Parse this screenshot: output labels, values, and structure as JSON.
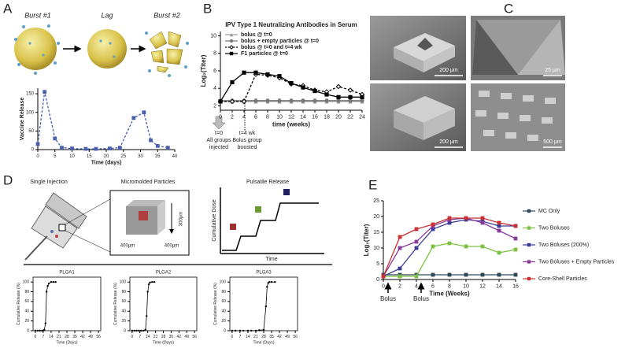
{
  "panel_labels": [
    "A",
    "B",
    "C",
    "D",
    "E"
  ],
  "panel_a": {
    "stages": [
      "Burst #1",
      "Lag",
      "Burst #2"
    ]
  },
  "panel_c": {
    "scale_bars": [
      "200 μm",
      "25 μm",
      "200 μm",
      "500 μm"
    ]
  },
  "panel_d": {
    "headings": [
      "Single Injection",
      "Micromolded Particles",
      "Pulsatile Release"
    ],
    "dimensions": [
      "300μm",
      "400μm",
      "400μm"
    ],
    "axes": [
      "Cumulative Dose",
      "Time"
    ]
  },
  "chart_data": [
    {
      "type": "line",
      "ylabel": "Vaccine Release",
      "xlabel": "Time (days)",
      "x": [
        0,
        2,
        5,
        7,
        10,
        14,
        17,
        21,
        24,
        28,
        31,
        33,
        35,
        38
      ],
      "values": [
        15,
        155,
        30,
        5,
        3,
        2,
        2,
        3,
        5,
        85,
        100,
        25,
        10,
        5
      ],
      "color": "#4a5fb0",
      "marker": "square",
      "dash": true,
      "xlim": [
        0,
        40
      ],
      "xticks": [
        0,
        5,
        10,
        15,
        20,
        25,
        30,
        35,
        40
      ],
      "ylim": [
        0,
        165
      ],
      "yticks": [
        0,
        50,
        100,
        150
      ]
    },
    {
      "type": "line",
      "title": "IPV Type 1 Neutralizing Antibodies in Serum",
      "ylabel": "Log₂(Titer)",
      "xlabel": "time (weeks)",
      "x": [
        0,
        2,
        4,
        6,
        8,
        10,
        12,
        14,
        16,
        18,
        20,
        22,
        24
      ],
      "series": [
        {
          "name": "bolus @ t=0",
          "color": "#999999",
          "marker": "triangle",
          "values": [
            2.5,
            2.5,
            2.5,
            2.5,
            2.5,
            2.5,
            2.5,
            2.5,
            2.5,
            2.5,
            2.5,
            2.5,
            2.5
          ]
        },
        {
          "name": "bolus + empty particles @ t=0",
          "color": "#777777",
          "marker": "circle",
          "values": [
            2.6,
            2.6,
            2.6,
            2.6,
            2.6,
            2.6,
            2.6,
            2.6,
            2.6,
            2.6,
            2.6,
            2.6,
            2.6
          ]
        },
        {
          "name": "bolus @ t=0 and t=4 wk",
          "color": "#000000",
          "marker": "diamond",
          "dash": true,
          "values": [
            2.5,
            2.5,
            2.5,
            5.6,
            5.5,
            5.2,
            4.5,
            4.3,
            3.8,
            3.6,
            4.2,
            3.8,
            3.3
          ]
        },
        {
          "name": "F1 particles @ t=0",
          "color": "#000000",
          "marker": "square",
          "values": [
            2.5,
            4.7,
            5.8,
            5.8,
            5.6,
            5.4,
            4.6,
            4.1,
            3.7,
            3.3,
            3.0,
            3.0,
            3.0
          ]
        }
      ],
      "annotations": [
        "t=0",
        "All groups",
        "injected",
        "t=4 wk",
        "Bolus group",
        "boosted"
      ],
      "legend": "top",
      "xlim": [
        0,
        24
      ],
      "xticks": [
        0,
        2,
        4,
        6,
        8,
        10,
        12,
        14,
        16,
        18,
        20,
        22,
        24
      ],
      "ylim": [
        1.5,
        10.5
      ],
      "yticks": [
        2,
        4,
        6,
        8,
        10
      ]
    },
    {
      "type": "line",
      "title": "PLGA1",
      "ylabel": "Cumulative Release (%)",
      "xlabel": "Time (Days)",
      "x": [
        0,
        2,
        4,
        6,
        8,
        9,
        10,
        11,
        12,
        14,
        16,
        18
      ],
      "values": [
        0,
        0,
        0,
        0,
        2,
        15,
        80,
        92,
        97,
        100,
        100,
        100
      ],
      "color": "#000000",
      "marker": "dot",
      "frame": true,
      "xlim": [
        -2,
        58
      ],
      "xticks": [
        0,
        7,
        14,
        21,
        28,
        35,
        42,
        49,
        56
      ],
      "ylim": [
        0,
        110
      ],
      "yticks": [
        0,
        20,
        40,
        60,
        80,
        100
      ]
    },
    {
      "type": "line",
      "title": "PLGA2",
      "ylabel": "Cumulative Release (%)",
      "xlabel": "Time (Days)",
      "x": [
        0,
        2,
        4,
        6,
        8,
        10,
        12,
        13,
        14,
        15,
        16,
        18,
        20
      ],
      "values": [
        0,
        0,
        0,
        0,
        0,
        0,
        2,
        30,
        80,
        95,
        99,
        100,
        100
      ],
      "color": "#000000",
      "marker": "dot",
      "frame": true,
      "xlim": [
        -2,
        58
      ],
      "xticks": [
        0,
        7,
        14,
        21,
        28,
        35,
        42,
        49,
        56
      ],
      "ylim": [
        0,
        110
      ],
      "yticks": [
        0,
        20,
        40,
        60,
        80,
        100
      ]
    },
    {
      "type": "line",
      "title": "PLGA3",
      "ylabel": "Cumulative Release (%)",
      "xlabel": "Time (Days)",
      "x": [
        0,
        3,
        7,
        10,
        14,
        17,
        21,
        24,
        28,
        30,
        31,
        32,
        33,
        35,
        38
      ],
      "values": [
        0,
        0,
        0,
        0,
        0,
        0,
        0,
        1,
        2,
        50,
        90,
        98,
        100,
        100,
        100
      ],
      "color": "#000000",
      "marker": "dot",
      "frame": true,
      "xlim": [
        -2,
        58
      ],
      "xticks": [
        0,
        7,
        14,
        21,
        28,
        35,
        42,
        49,
        56
      ],
      "ylim": [
        0,
        110
      ],
      "yticks": [
        0,
        20,
        40,
        60,
        80,
        100
      ]
    },
    {
      "type": "line",
      "ylabel": "Log₂(Titer)",
      "xlabel": "Time (Weeks)",
      "x": [
        0,
        2,
        4,
        6,
        8,
        10,
        12,
        14,
        16
      ],
      "series": [
        {
          "name": "MC Only",
          "color": "#2f4858",
          "marker": "square",
          "values": [
            1.5,
            1.5,
            1.5,
            1.5,
            1.5,
            1.5,
            1.5,
            1.5,
            1.5
          ]
        },
        {
          "name": "Two Boluses",
          "color": "#7cc242",
          "marker": "square",
          "values": [
            1,
            1,
            1,
            10.5,
            11.5,
            10.5,
            10.5,
            8.5,
            9.5
          ]
        },
        {
          "name": "Two Boluses (200%)",
          "color": "#3a3a9a",
          "marker": "square",
          "values": [
            1,
            3.5,
            10,
            16,
            18,
            19,
            18.5,
            17,
            17
          ]
        },
        {
          "name": "Two Boluses + Empty Particles",
          "color": "#8a3a9a",
          "marker": "square",
          "values": [
            1,
            10,
            12,
            17,
            19,
            19.5,
            18,
            15.5,
            13
          ]
        },
        {
          "name": "Core-Shell Particles",
          "color": "#c83232",
          "marker": "square",
          "values": [
            1,
            13.5,
            16,
            17.5,
            19.5,
            19.5,
            19.5,
            18,
            17
          ]
        }
      ],
      "annotations": [
        "Bolus",
        "Bolus"
      ],
      "legend": "right",
      "xlim": [
        0,
        16
      ],
      "xticks": [
        0,
        2,
        4,
        6,
        8,
        10,
        12,
        14,
        16
      ],
      "ylim": [
        0,
        25
      ],
      "yticks": [
        0,
        5,
        10,
        15,
        20,
        25
      ]
    }
  ]
}
